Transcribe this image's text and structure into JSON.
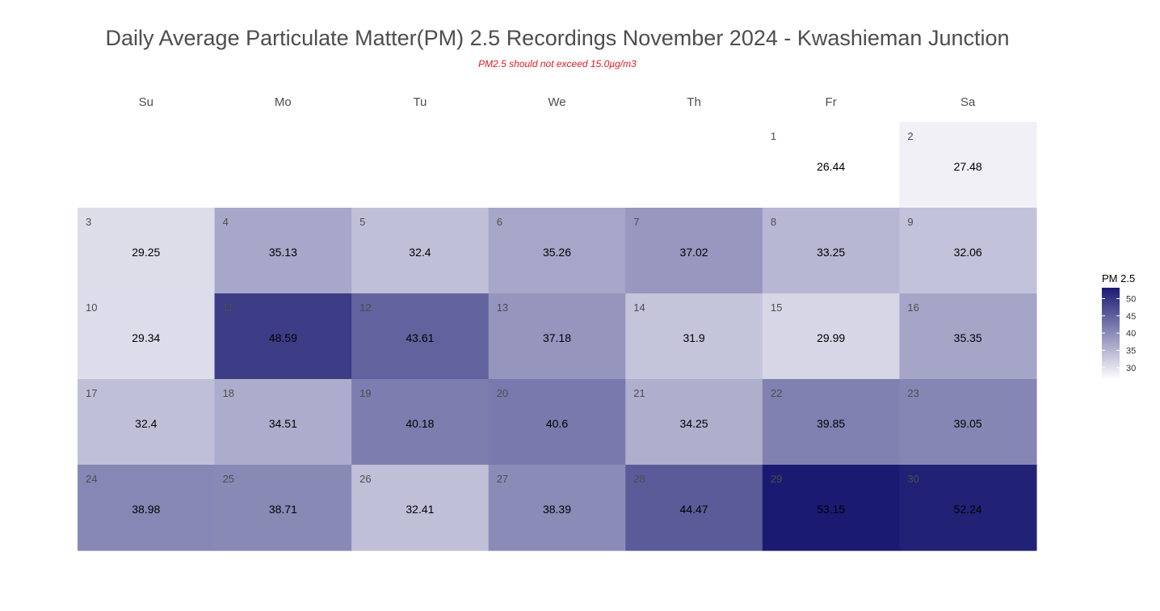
{
  "chart_data": {
    "type": "heatmap",
    "title": "Daily Average Particulate Matter(PM) 2.5 Recordings November 2024 -  Kwashieman Junction",
    "subtitle": "PM2.5 should not exceed 15.0µg/m3",
    "weekdays": [
      "Su",
      "Mo",
      "Tu",
      "We",
      "Th",
      "Fr",
      "Sa"
    ],
    "first_weekday_index": 5,
    "days": [
      {
        "day": "1",
        "value": 26.44
      },
      {
        "day": "2",
        "value": 27.48
      },
      {
        "day": "3",
        "value": 29.25
      },
      {
        "day": "4",
        "value": 35.13
      },
      {
        "day": "5",
        "value": 32.4
      },
      {
        "day": "6",
        "value": 35.26
      },
      {
        "day": "7",
        "value": 37.02
      },
      {
        "day": "8",
        "value": 33.25
      },
      {
        "day": "9",
        "value": 32.06
      },
      {
        "day": "10",
        "value": 29.34
      },
      {
        "day": "11",
        "value": 48.59
      },
      {
        "day": "12",
        "value": 43.61
      },
      {
        "day": "13",
        "value": 37.18
      },
      {
        "day": "14",
        "value": 31.9
      },
      {
        "day": "15",
        "value": 29.99
      },
      {
        "day": "16",
        "value": 35.35
      },
      {
        "day": "17",
        "value": 32.4
      },
      {
        "day": "18",
        "value": 34.51
      },
      {
        "day": "19",
        "value": 40.18
      },
      {
        "day": "20",
        "value": 40.6
      },
      {
        "day": "21",
        "value": 34.25
      },
      {
        "day": "22",
        "value": 39.85
      },
      {
        "day": "23",
        "value": 39.05
      },
      {
        "day": "24",
        "value": 38.98
      },
      {
        "day": "25",
        "value": 38.71
      },
      {
        "day": "26",
        "value": 32.41
      },
      {
        "day": "27",
        "value": 38.39
      },
      {
        "day": "28",
        "value": 44.47
      },
      {
        "day": "29",
        "value": 53.15
      },
      {
        "day": "30",
        "value": 52.24
      }
    ],
    "legend": {
      "title": "PM 2.5",
      "placement": "right",
      "ticks": [
        30,
        35,
        40,
        45,
        50
      ],
      "range": [
        26.44,
        53.15
      ],
      "color_low": "#ffffff",
      "color_high": "#1a1a72"
    }
  }
}
